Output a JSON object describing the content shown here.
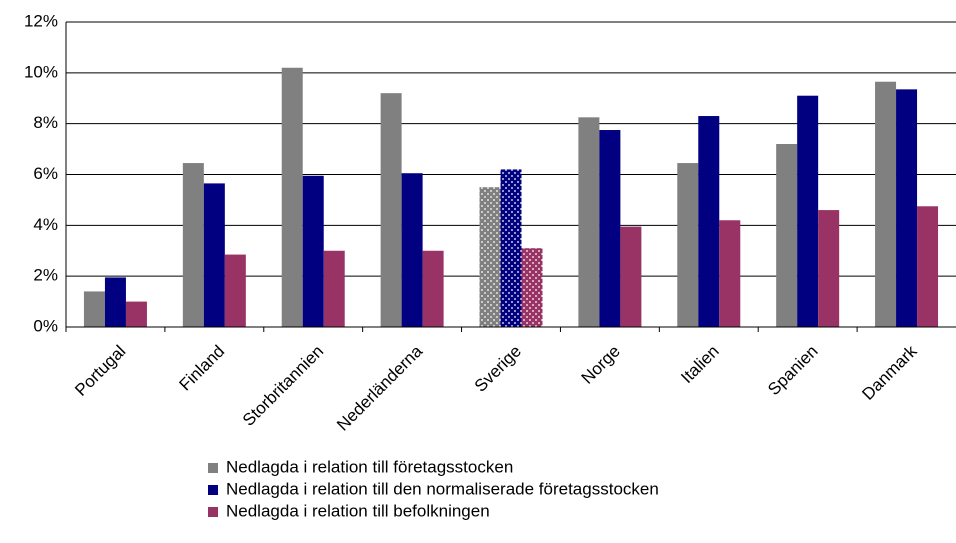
{
  "chart_data": {
    "type": "bar",
    "categories": [
      "Portugal",
      "Finland",
      "Storbritannien",
      "Nederländerna",
      "Sverige",
      "Norge",
      "Italien",
      "Spanien",
      "Danmark"
    ],
    "series": [
      {
        "name": "Nedlagda i relation till företagsstocken",
        "color": "#808080",
        "values": [
          1.4,
          6.45,
          10.2,
          9.2,
          5.5,
          8.25,
          6.45,
          7.2,
          9.65
        ]
      },
      {
        "name": "Nedlagda i relation till den normaliserade företagsstocken",
        "color": "#000080",
        "values": [
          1.95,
          5.65,
          5.95,
          6.05,
          6.2,
          7.75,
          8.3,
          9.1,
          9.35
        ]
      },
      {
        "name": "Nedlagda i relation till befolkningen",
        "color": "#993366",
        "values": [
          1.0,
          2.85,
          3.0,
          3.0,
          3.1,
          3.95,
          4.2,
          4.6,
          4.75
        ]
      }
    ],
    "highlight_index": 4,
    "ylim": [
      0,
      12
    ],
    "yticks": [
      {
        "value": 0,
        "label": "0%"
      },
      {
        "value": 2,
        "label": "2%"
      },
      {
        "value": 4,
        "label": "4%"
      },
      {
        "value": 6,
        "label": "6%"
      },
      {
        "value": 8,
        "label": "8%"
      },
      {
        "value": 10,
        "label": "10%"
      },
      {
        "value": 12,
        "label": "12%"
      }
    ],
    "grid": true
  }
}
